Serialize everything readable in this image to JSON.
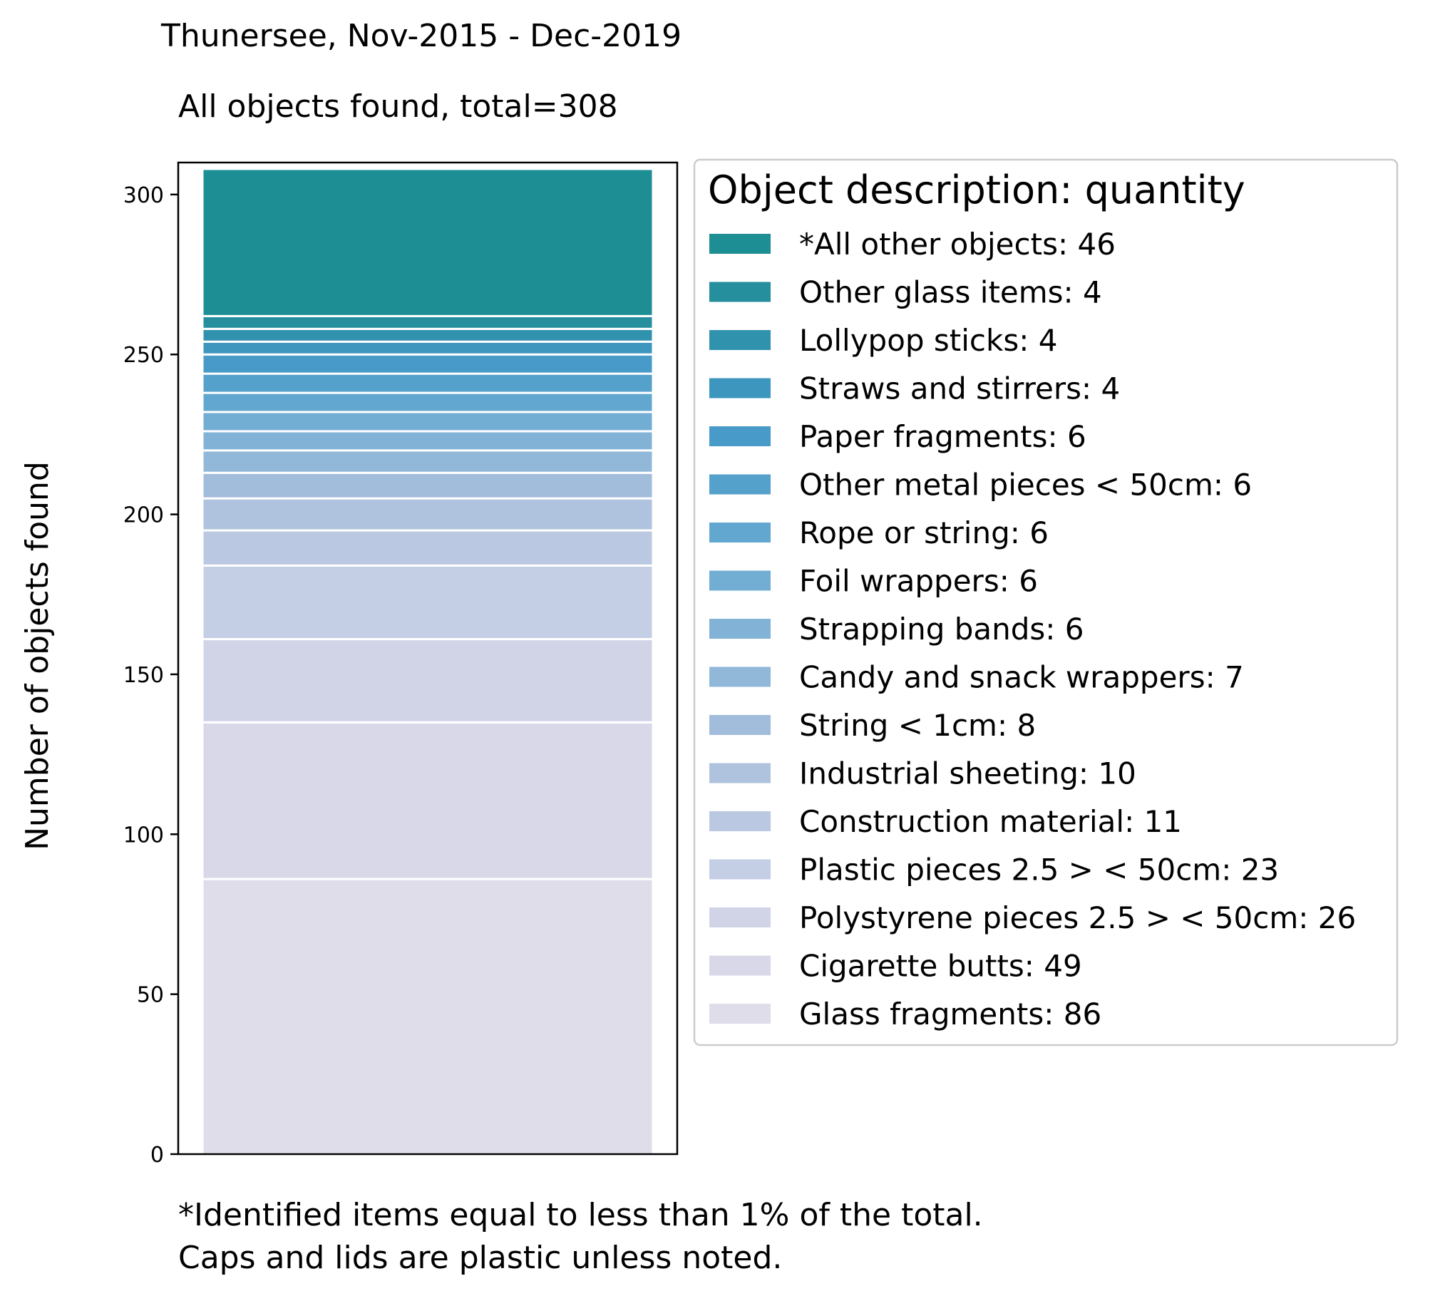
{
  "title": "Thunersee, Nov-2015 - Dec-2019",
  "subtitle": "All objects found,  total=308",
  "footnotes": [
    "*Identified items equal to less than 1% of the total.",
    "Caps and lids are plastic unless noted."
  ],
  "chart_data": {
    "type": "bar",
    "stacked": true,
    "title": "Thunersee, Nov-2015 - Dec-2019",
    "subtitle": "All objects found,  total=308",
    "ylabel": "Number of objects found",
    "xlabel": "",
    "ylim": [
      0,
      310
    ],
    "yticks": [
      0,
      50,
      100,
      150,
      200,
      250,
      300
    ],
    "grid": false,
    "legend_title": "Object description: quantity",
    "legend_position": "right",
    "series": [
      {
        "name": "Glass fragments",
        "value": 86,
        "label": "Glass fragments: 86",
        "color": "#dedde9"
      },
      {
        "name": "Cigarette butts",
        "value": 49,
        "label": "Cigarette butts: 49",
        "color": "#d8d8e8"
      },
      {
        "name": "Polystyrene pieces 2.5 > < 50cm",
        "value": 26,
        "label": "Polystyrene pieces 2.5 > < 50cm: 26",
        "color": "#d1d3e7"
      },
      {
        "name": "Plastic pieces 2.5 > < 50cm",
        "value": 23,
        "label": "Plastic pieces 2.5 > < 50cm: 23",
        "color": "#c4cee5"
      },
      {
        "name": "Construction material",
        "value": 11,
        "label": "Construction material: 11",
        "color": "#bbc8e2"
      },
      {
        "name": "Industrial sheeting",
        "value": 10,
        "label": "Industrial sheeting: 10",
        "color": "#afc2de"
      },
      {
        "name": "String < 1cm",
        "value": 8,
        "label": "String < 1cm: 8",
        "color": "#a2bcdc"
      },
      {
        "name": "Candy and snack wrappers",
        "value": 7,
        "label": "Candy and snack wrappers: 7",
        "color": "#92b8d9"
      },
      {
        "name": "Strapping bands",
        "value": 6,
        "label": "Strapping bands: 6",
        "color": "#82b3d6"
      },
      {
        "name": "Foil wrappers",
        "value": 6,
        "label": "Foil wrappers: 6",
        "color": "#72add3"
      },
      {
        "name": "Rope or string",
        "value": 6,
        "label": "Rope or string: 6",
        "color": "#62a7d0"
      },
      {
        "name": "Other metal pieces < 50cm",
        "value": 6,
        "label": "Other metal pieces < 50cm: 6",
        "color": "#54a1cc"
      },
      {
        "name": "Paper fragments",
        "value": 6,
        "label": "Paper fragments: 6",
        "color": "#489ac8"
      },
      {
        "name": "Straws and stirrers",
        "value": 4,
        "label": "Straws and stirrers: 4",
        "color": "#3c96bd"
      },
      {
        "name": "Lollypop sticks",
        "value": 4,
        "label": "Lollypop sticks: 4",
        "color": "#3192ae"
      },
      {
        "name": "Other glass items",
        "value": 4,
        "label": "Other glass items: 4",
        "color": "#258f9d"
      },
      {
        "name": "*All other objects",
        "value": 46,
        "label": "*All other objects: 46",
        "color": "#1d8e93"
      }
    ]
  }
}
